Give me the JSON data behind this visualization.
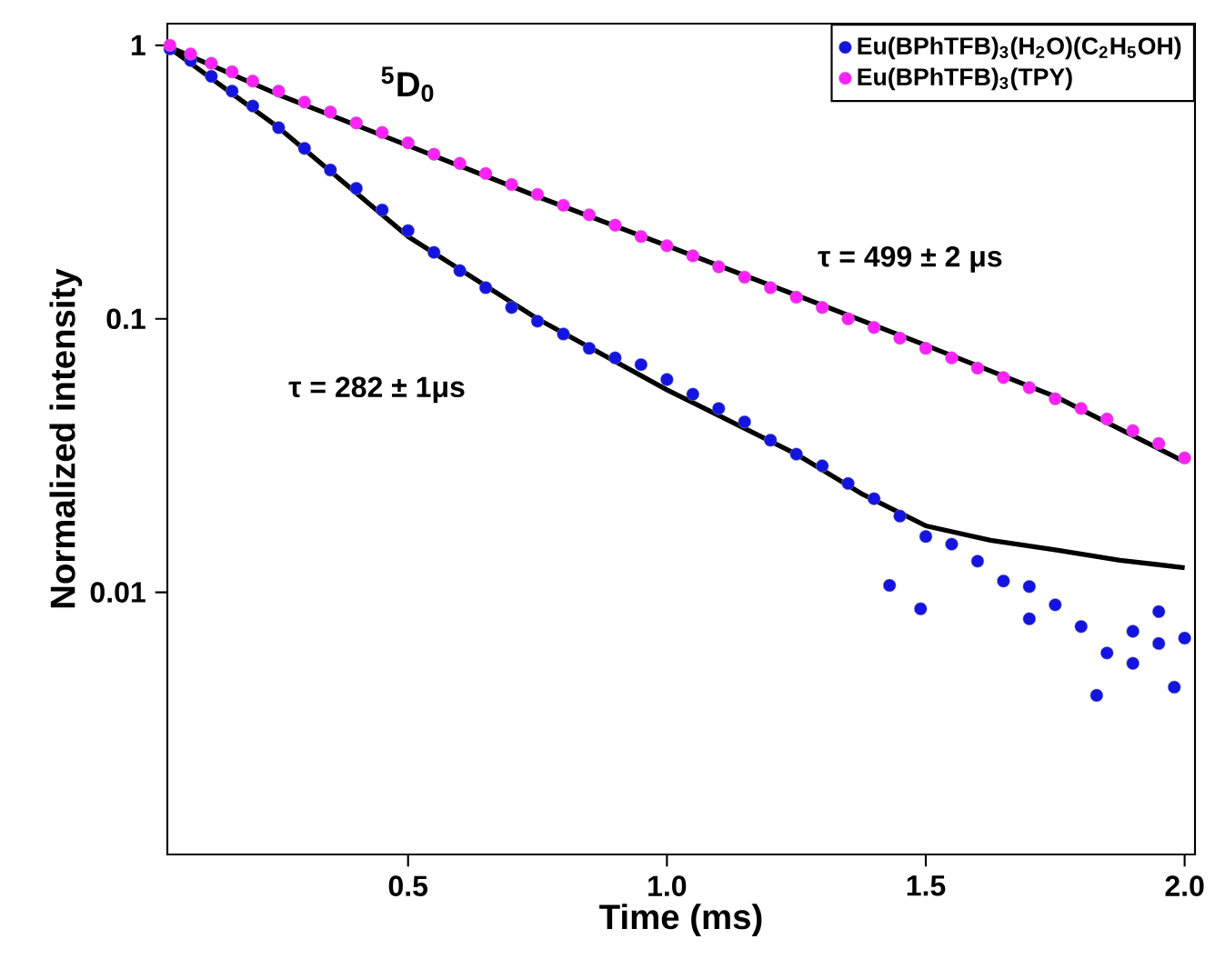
{
  "chart_data": {
    "type": "scatter",
    "xlabel": "Time (ms)",
    "ylabel": "Normalized intensity",
    "annotations": [
      "$^{5}$D$_{0}$",
      "τ = 499 ± 2 μs",
      "τ = 282 ± 1μs"
    ],
    "log": "y",
    "grid": false,
    "legend": "top right",
    "xlim": [
      0.035,
      2.02
    ],
    "ylim": [
      0.0011,
      1.2
    ],
    "xticks": [
      0.5,
      {
        "value": 1,
        "label": "1.0"
      },
      1.5,
      {
        "value": 2,
        "label": "2.0"
      }
    ],
    "yticks": [
      1,
      0.1,
      0.01
    ],
    "series": [
      {
        "name": "Eu(BPhTFB)$_{3}$(H$_{2}$O)(C$_{2}$H$_{5}$OH)",
        "color": "#1414e0",
        "marker": "circle",
        "x": [
          0.04,
          0.08,
          0.12,
          0.16,
          0.2,
          0.25,
          0.3,
          0.35,
          0.4,
          0.45,
          0.5,
          0.55,
          0.6,
          0.65,
          0.7,
          0.75,
          0.8,
          0.85,
          0.9,
          0.95,
          1.0,
          1.05,
          1.1,
          1.15,
          1.2,
          1.25,
          1.3,
          1.35,
          1.4,
          1.45,
          1.5,
          1.55,
          1.6,
          1.65,
          1.7,
          1.75,
          1.8,
          1.85,
          1.9,
          1.95,
          2.0,
          1.43,
          1.49,
          1.83,
          1.7,
          1.9,
          1.95,
          1.98
        ],
        "values": [
          0.97,
          0.88,
          0.77,
          0.68,
          0.6,
          0.5,
          0.42,
          0.35,
          0.3,
          0.25,
          0.21,
          0.175,
          0.15,
          0.13,
          0.11,
          0.098,
          0.088,
          0.078,
          0.072,
          0.068,
          0.06,
          0.053,
          0.047,
          0.042,
          0.036,
          0.032,
          0.029,
          0.025,
          0.022,
          0.019,
          0.016,
          0.015,
          0.013,
          0.011,
          0.0105,
          0.009,
          0.0075,
          0.006,
          0.0072,
          0.0065,
          0.0068,
          0.0106,
          0.0087,
          0.0042,
          0.008,
          0.0055,
          0.0085,
          0.0045
        ]
      },
      {
        "name": "Eu(BPhTFB)$_{3}$(TPY)",
        "color": "#ff22ff",
        "marker": "circle",
        "x": [
          0.04,
          0.08,
          0.12,
          0.16,
          0.2,
          0.25,
          0.3,
          0.35,
          0.4,
          0.45,
          0.5,
          0.55,
          0.6,
          0.65,
          0.7,
          0.75,
          0.8,
          0.85,
          0.9,
          0.95,
          1.0,
          1.05,
          1.1,
          1.15,
          1.2,
          1.25,
          1.3,
          1.35,
          1.4,
          1.45,
          1.5,
          1.55,
          1.6,
          1.65,
          1.7,
          1.75,
          1.8,
          1.85,
          1.9,
          1.95,
          2.0
        ],
        "values": [
          1.0,
          0.93,
          0.86,
          0.8,
          0.74,
          0.68,
          0.62,
          0.57,
          0.52,
          0.48,
          0.44,
          0.4,
          0.37,
          0.34,
          0.31,
          0.285,
          0.26,
          0.24,
          0.22,
          0.2,
          0.185,
          0.17,
          0.155,
          0.142,
          0.13,
          0.12,
          0.11,
          0.1,
          0.093,
          0.085,
          0.078,
          0.072,
          0.066,
          0.061,
          0.056,
          0.051,
          0.047,
          0.043,
          0.039,
          0.035,
          0.031
        ]
      },
      {
        "type": "line",
        "color": "#000000",
        "x": [
          0.042,
          0.25,
          0.5,
          0.75,
          1.0,
          1.25,
          1.375,
          1.5,
          1.625,
          1.75,
          1.875,
          2.0
        ],
        "values": [
          0.97,
          0.5,
          0.2,
          0.1,
          0.055,
          0.032,
          0.023,
          0.0175,
          0.0155,
          0.0143,
          0.0131,
          0.0123
        ]
      },
      {
        "type": "line",
        "color": "#000000",
        "x": [
          0.042,
          0.25,
          0.5,
          0.75,
          1.0,
          1.25,
          1.5,
          1.75,
          2.0
        ],
        "values": [
          0.98,
          0.66,
          0.43,
          0.28,
          0.185,
          0.122,
          0.08,
          0.052,
          0.03
        ]
      }
    ]
  }
}
